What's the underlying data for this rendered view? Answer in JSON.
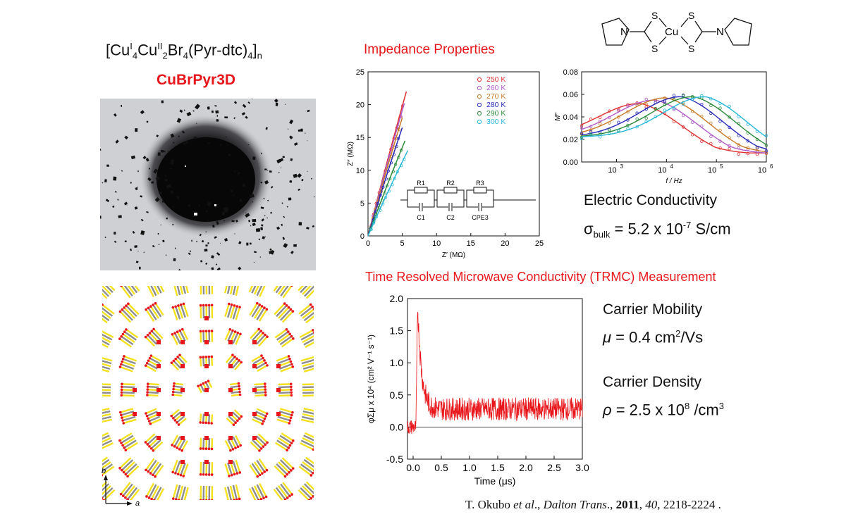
{
  "slide": {
    "formula": {
      "p1": "[Cu",
      "s1": "I",
      "b1": "4",
      "p2": "Cu",
      "s2": "II",
      "b2": "2",
      "p3": "Br",
      "b3": "4",
      "p4": "(Pyr-dtc)",
      "b4": "4",
      "p5": "]",
      "b5": "n"
    },
    "compound_name": "CuBrPyr3D",
    "impedance_title": "Impedance Properties",
    "trmc_title": "Time Resolved Microwave Conductivity (TRMC) Measurement",
    "molecule_labels": {
      "n_left": "N",
      "n_right": "N",
      "cu": "Cu",
      "s_tl": "S",
      "s_bl": "S",
      "s_tr": "S",
      "s_br": "S"
    },
    "electric_conductivity_label": "Electric Conductivity",
    "conductivity": {
      "symbol": "σ",
      "sub": "bulk",
      "eq": " = 5.2 x 10",
      "exp": "-7",
      "unit": " S/cm"
    },
    "mobility_label": "Carrier Mobility",
    "mobility": {
      "symbol": "μ",
      "eq": " = 0.4 cm",
      "exp": "2",
      "unit": "/Vs"
    },
    "density_label": "Carrier Density",
    "density": {
      "symbol": "ρ",
      "eq": " = 2.5 x 10",
      "exp": "8",
      "unit": " /cm",
      "exp2": "3"
    },
    "citation": {
      "author": "T. Okubo ",
      "etal": "et al",
      "mid": "., ",
      "journal": "Dalton Trans",
      "dot": "., ",
      "year": "2011",
      "sep": ", ",
      "vol": "40",
      "pages": ", 2218-2224 ."
    },
    "crystal_axes": {
      "b": "b",
      "a": "a"
    },
    "colors": {
      "accent_red": "#e8161b",
      "bond_yellow": "#f4e01c",
      "atom_gray": "#8c8c92"
    }
  },
  "chart_data": [
    {
      "id": "nyquist",
      "type": "line",
      "xlabel": "Z′ (MΩ)",
      "ylabel": "Z″ (MΩ)",
      "xlim": [
        0,
        25
      ],
      "ylim": [
        0,
        25
      ],
      "xticks": [
        0,
        5,
        10,
        15,
        20,
        25
      ],
      "yticks": [
        0,
        5,
        10,
        15,
        20,
        25
      ],
      "series": [
        {
          "name": "250 K",
          "marker": "circle",
          "color": "#e03030",
          "x": [
            0,
            5.6
          ],
          "y": [
            0,
            22
          ]
        },
        {
          "name": "260 K",
          "marker": "triangle",
          "color": "#b05cc8",
          "x": [
            0,
            5.3
          ],
          "y": [
            0,
            20.2
          ]
        },
        {
          "name": "270 K",
          "marker": "square",
          "color": "#c87a28",
          "x": [
            0,
            5.0
          ],
          "y": [
            0,
            18
          ]
        },
        {
          "name": "280 K",
          "marker": "diamond",
          "color": "#2a2ab8",
          "x": [
            0,
            5.0
          ],
          "y": [
            0,
            16.5
          ]
        },
        {
          "name": "290 K",
          "marker": "triangle",
          "color": "#2a8a3a",
          "x": [
            0,
            5.4
          ],
          "y": [
            0,
            14.5
          ]
        },
        {
          "name": "300 K",
          "marker": "square",
          "color": "#28b8d8",
          "x": [
            0,
            5.8
          ],
          "y": [
            0,
            13
          ]
        }
      ],
      "circuit_labels": [
        "R1",
        "R2",
        "R3",
        "C1",
        "C2",
        "CPE3"
      ]
    },
    {
      "id": "modulus",
      "type": "line",
      "xscale": "log",
      "xlabel": "f / Hz",
      "ylabel": "M″",
      "xlim": [
        200,
        1000000
      ],
      "ylim": [
        0,
        0.08
      ],
      "yticks": [
        0.0,
        0.02,
        0.04,
        0.06,
        0.08
      ],
      "xticks": [
        1000,
        10000,
        100000,
        1000000
      ],
      "xtick_labels": [
        {
          "base": "10",
          "exp": "3"
        },
        {
          "base": "10",
          "exp": "4"
        },
        {
          "base": "10",
          "exp": "5"
        },
        {
          "base": "10",
          "exp": "6"
        }
      ],
      "series": [
        {
          "color": "#e03030",
          "peak_f": 3000,
          "peak": 0.052
        },
        {
          "color": "#b05cc8",
          "peak_f": 6000,
          "peak": 0.055
        },
        {
          "color": "#c87a28",
          "peak_f": 10000,
          "peak": 0.057
        },
        {
          "color": "#2a2ab8",
          "peak_f": 20000,
          "peak": 0.058
        },
        {
          "color": "#2a8a3a",
          "peak_f": 35000,
          "peak": 0.058
        },
        {
          "color": "#28b8d8",
          "peak_f": 60000,
          "peak": 0.058
        }
      ]
    },
    {
      "id": "trmc",
      "type": "line",
      "xlabel": "Time (μs)",
      "ylabel": "φΣμ x 10⁴ (cm² V⁻¹ s⁻¹)",
      "xlim": [
        -0.1,
        3.0
      ],
      "ylim": [
        -0.5,
        2.0
      ],
      "xticks": [
        0.0,
        0.5,
        1.0,
        1.5,
        2.0,
        2.5,
        3.0
      ],
      "xtick_labels": [
        "0.0",
        "0.5",
        "1.0",
        "1.5",
        "2.0",
        "2.5",
        "3.0"
      ],
      "yticks": [
        -0.5,
        0.0,
        0.5,
        1.0,
        1.5,
        2.0
      ],
      "ytick_labels": [
        "-0.5",
        "0.0",
        "0.5",
        "1.0",
        "1.5",
        "2.0"
      ],
      "color": "#e8161b",
      "peak": {
        "x": 0.08,
        "y": 1.9
      },
      "plateau": 0.28
    }
  ]
}
